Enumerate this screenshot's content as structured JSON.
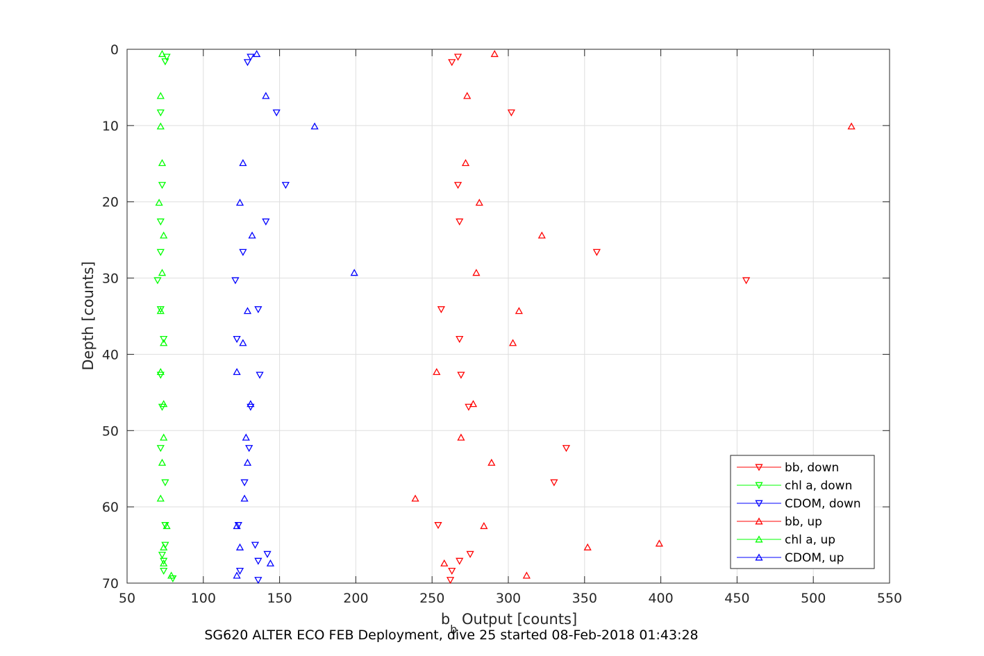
{
  "caption": "SG620 ALTER ECO FEB Deployment, dive 25 started 08-Feb-2018 01:43:28",
  "chart_data": {
    "type": "scatter",
    "xlabel_main": "b",
    "xlabel_sub": "b",
    "xlabel_rest": " Output [counts]",
    "ylabel": "Depth [counts]",
    "xlim": [
      50,
      550
    ],
    "ylim": [
      0,
      70
    ],
    "y_reversed": true,
    "grid": true,
    "legend_location": "bottom-right",
    "x_ticks": [
      50,
      100,
      150,
      200,
      250,
      300,
      350,
      400,
      450,
      500,
      550
    ],
    "y_ticks": [
      0,
      10,
      20,
      30,
      40,
      50,
      60,
      70
    ],
    "series": [
      {
        "name": "bb, down",
        "color": "#ff0000",
        "marker": "triangle-down",
        "points": [
          [
            267,
            1.0
          ],
          [
            263,
            1.7
          ],
          [
            302,
            8.3
          ],
          [
            267,
            17.8
          ],
          [
            268,
            22.6
          ],
          [
            358,
            26.6
          ],
          [
            456,
            30.3
          ],
          [
            256,
            34.1
          ],
          [
            268,
            38.0
          ],
          [
            269,
            42.7
          ],
          [
            274,
            46.9
          ],
          [
            338,
            52.3
          ],
          [
            330,
            56.8
          ],
          [
            254,
            62.4
          ],
          [
            275,
            66.2
          ],
          [
            268,
            67.1
          ],
          [
            263,
            68.4
          ],
          [
            262,
            69.6
          ]
        ]
      },
      {
        "name": "chl a, down",
        "color": "#00ff00",
        "marker": "triangle-down",
        "points": [
          [
            76,
            1.0
          ],
          [
            75,
            1.6
          ],
          [
            72,
            8.3
          ],
          [
            73,
            17.8
          ],
          [
            72,
            22.6
          ],
          [
            72,
            26.6
          ],
          [
            70,
            30.3
          ],
          [
            72,
            34.1
          ],
          [
            74,
            38.0
          ],
          [
            72,
            42.7
          ],
          [
            73,
            46.9
          ],
          [
            72,
            52.3
          ],
          [
            75,
            56.8
          ],
          [
            75,
            62.4
          ],
          [
            75,
            65.0
          ],
          [
            73,
            66.3
          ],
          [
            74,
            67.1
          ],
          [
            74,
            68.4
          ],
          [
            80,
            69.4
          ]
        ]
      },
      {
        "name": "CDOM, down",
        "color": "#0000ff",
        "marker": "triangle-down",
        "points": [
          [
            131,
            1.0
          ],
          [
            129,
            1.7
          ],
          [
            148,
            8.3
          ],
          [
            154,
            17.8
          ],
          [
            141,
            22.6
          ],
          [
            126,
            26.6
          ],
          [
            121,
            30.3
          ],
          [
            136,
            34.1
          ],
          [
            122,
            38.0
          ],
          [
            137,
            42.7
          ],
          [
            131,
            46.9
          ],
          [
            130,
            52.3
          ],
          [
            127,
            56.8
          ],
          [
            123,
            62.4
          ],
          [
            134,
            65.0
          ],
          [
            142,
            66.2
          ],
          [
            136,
            67.1
          ],
          [
            124,
            68.4
          ],
          [
            136,
            69.6
          ]
        ]
      },
      {
        "name": "bb, up",
        "color": "#ff0000",
        "marker": "triangle-up",
        "points": [
          [
            291,
            0.6
          ],
          [
            273,
            6.1
          ],
          [
            525,
            10.1
          ],
          [
            272,
            14.9
          ],
          [
            281,
            20.1
          ],
          [
            322,
            24.4
          ],
          [
            279,
            29.3
          ],
          [
            307,
            34.3
          ],
          [
            303,
            38.5
          ],
          [
            253,
            42.3
          ],
          [
            277,
            46.5
          ],
          [
            269,
            50.9
          ],
          [
            289,
            54.2
          ],
          [
            239,
            58.9
          ],
          [
            284,
            62.5
          ],
          [
            399,
            64.8
          ],
          [
            352,
            65.3
          ],
          [
            258,
            67.4
          ],
          [
            312,
            69.0
          ]
        ]
      },
      {
        "name": "chl a, up",
        "color": "#00ff00",
        "marker": "triangle-up",
        "points": [
          [
            73,
            0.6
          ],
          [
            72,
            6.1
          ],
          [
            72,
            10.1
          ],
          [
            73,
            14.9
          ],
          [
            71,
            20.1
          ],
          [
            74,
            24.4
          ],
          [
            73,
            29.3
          ],
          [
            72,
            34.3
          ],
          [
            74,
            38.5
          ],
          [
            72,
            42.3
          ],
          [
            74,
            46.5
          ],
          [
            74,
            50.9
          ],
          [
            73,
            54.2
          ],
          [
            72,
            58.9
          ],
          [
            76,
            62.5
          ],
          [
            74,
            65.3
          ],
          [
            74,
            67.4
          ],
          [
            79,
            69.0
          ]
        ]
      },
      {
        "name": "CDOM, up",
        "color": "#0000ff",
        "marker": "triangle-up",
        "points": [
          [
            135,
            0.6
          ],
          [
            141,
            6.1
          ],
          [
            173,
            10.1
          ],
          [
            126,
            14.9
          ],
          [
            124,
            20.1
          ],
          [
            132,
            24.4
          ],
          [
            199,
            29.3
          ],
          [
            129,
            34.3
          ],
          [
            126,
            38.5
          ],
          [
            122,
            42.3
          ],
          [
            131,
            46.5
          ],
          [
            128,
            50.9
          ],
          [
            129,
            54.2
          ],
          [
            127,
            58.9
          ],
          [
            122,
            62.5
          ],
          [
            124,
            65.3
          ],
          [
            144,
            67.4
          ],
          [
            122,
            69.0
          ]
        ]
      }
    ]
  }
}
